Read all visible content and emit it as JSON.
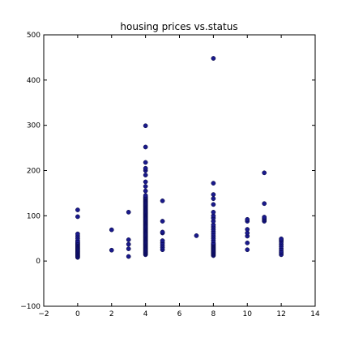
{
  "chart_data": {
    "type": "scatter",
    "title": "housing prices vs.status",
    "xlabel": "",
    "ylabel": "",
    "xlim": [
      -2,
      14
    ],
    "ylim": [
      -100,
      500
    ],
    "xticks": [
      -2,
      0,
      2,
      4,
      6,
      8,
      10,
      12,
      14
    ],
    "yticks": [
      -100,
      0,
      100,
      200,
      300,
      400,
      500
    ],
    "grid": false,
    "marker_color": "#1a1a8c",
    "marker_edge": "#000033",
    "series": [
      {
        "points": [
          [
            0,
            8
          ],
          [
            0,
            10
          ],
          [
            0,
            12
          ],
          [
            0,
            14
          ],
          [
            0,
            16
          ],
          [
            0,
            18
          ],
          [
            0,
            20
          ],
          [
            0,
            22
          ],
          [
            0,
            24
          ],
          [
            0,
            26
          ],
          [
            0,
            28
          ],
          [
            0,
            30
          ],
          [
            0,
            32
          ],
          [
            0,
            34
          ],
          [
            0,
            36
          ],
          [
            0,
            38
          ],
          [
            0,
            40
          ],
          [
            0,
            42
          ],
          [
            0,
            45
          ],
          [
            0,
            50
          ],
          [
            0,
            55
          ],
          [
            0,
            60
          ],
          [
            0,
            98
          ],
          [
            0,
            113
          ],
          [
            2,
            24
          ],
          [
            2,
            69
          ],
          [
            3,
            10
          ],
          [
            3,
            27
          ],
          [
            3,
            37
          ],
          [
            3,
            47
          ],
          [
            3,
            108
          ],
          [
            4,
            14
          ],
          [
            4,
            16
          ],
          [
            4,
            18
          ],
          [
            4,
            20
          ],
          [
            4,
            22
          ],
          [
            4,
            24
          ],
          [
            4,
            26
          ],
          [
            4,
            28
          ],
          [
            4,
            30
          ],
          [
            4,
            32
          ],
          [
            4,
            34
          ],
          [
            4,
            36
          ],
          [
            4,
            38
          ],
          [
            4,
            40
          ],
          [
            4,
            42
          ],
          [
            4,
            44
          ],
          [
            4,
            46
          ],
          [
            4,
            48
          ],
          [
            4,
            50
          ],
          [
            4,
            52
          ],
          [
            4,
            54
          ],
          [
            4,
            56
          ],
          [
            4,
            58
          ],
          [
            4,
            60
          ],
          [
            4,
            62
          ],
          [
            4,
            64
          ],
          [
            4,
            66
          ],
          [
            4,
            68
          ],
          [
            4,
            70
          ],
          [
            4,
            72
          ],
          [
            4,
            74
          ],
          [
            4,
            76
          ],
          [
            4,
            78
          ],
          [
            4,
            80
          ],
          [
            4,
            82
          ],
          [
            4,
            84
          ],
          [
            4,
            86
          ],
          [
            4,
            88
          ],
          [
            4,
            90
          ],
          [
            4,
            92
          ],
          [
            4,
            94
          ],
          [
            4,
            96
          ],
          [
            4,
            98
          ],
          [
            4,
            100
          ],
          [
            4,
            102
          ],
          [
            4,
            104
          ],
          [
            4,
            106
          ],
          [
            4,
            108
          ],
          [
            4,
            110
          ],
          [
            4,
            112
          ],
          [
            4,
            114
          ],
          [
            4,
            116
          ],
          [
            4,
            118
          ],
          [
            4,
            120
          ],
          [
            4,
            122
          ],
          [
            4,
            124
          ],
          [
            4,
            126
          ],
          [
            4,
            128
          ],
          [
            4,
            130
          ],
          [
            4,
            132
          ],
          [
            4,
            134
          ],
          [
            4,
            136
          ],
          [
            4,
            138
          ],
          [
            4,
            140
          ],
          [
            4,
            142
          ],
          [
            4,
            145
          ],
          [
            4,
            155
          ],
          [
            4,
            165
          ],
          [
            4,
            175
          ],
          [
            4,
            190
          ],
          [
            4,
            200
          ],
          [
            4,
            205
          ],
          [
            4,
            218
          ],
          [
            4,
            252
          ],
          [
            4,
            299
          ],
          [
            5,
            25
          ],
          [
            5,
            30
          ],
          [
            5,
            35
          ],
          [
            5,
            40
          ],
          [
            5,
            45
          ],
          [
            5,
            62
          ],
          [
            5,
            64
          ],
          [
            5,
            88
          ],
          [
            5,
            133
          ],
          [
            7,
            56
          ],
          [
            8,
            12
          ],
          [
            8,
            14
          ],
          [
            8,
            16
          ],
          [
            8,
            18
          ],
          [
            8,
            20
          ],
          [
            8,
            22
          ],
          [
            8,
            24
          ],
          [
            8,
            26
          ],
          [
            8,
            28
          ],
          [
            8,
            30
          ],
          [
            8,
            32
          ],
          [
            8,
            34
          ],
          [
            8,
            36
          ],
          [
            8,
            38
          ],
          [
            8,
            40
          ],
          [
            8,
            45
          ],
          [
            8,
            50
          ],
          [
            8,
            55
          ],
          [
            8,
            60
          ],
          [
            8,
            65
          ],
          [
            8,
            70
          ],
          [
            8,
            75
          ],
          [
            8,
            80
          ],
          [
            8,
            88
          ],
          [
            8,
            95
          ],
          [
            8,
            100
          ],
          [
            8,
            108
          ],
          [
            8,
            125
          ],
          [
            8,
            138
          ],
          [
            8,
            147
          ],
          [
            8,
            172
          ],
          [
            8,
            448
          ],
          [
            10,
            25
          ],
          [
            10,
            40
          ],
          [
            10,
            55
          ],
          [
            10,
            62
          ],
          [
            10,
            70
          ],
          [
            10,
            88
          ],
          [
            10,
            92
          ],
          [
            11,
            88
          ],
          [
            11,
            91
          ],
          [
            11,
            94
          ],
          [
            11,
            97
          ],
          [
            11,
            127
          ],
          [
            11,
            195
          ],
          [
            12,
            14
          ],
          [
            12,
            18
          ],
          [
            12,
            22
          ],
          [
            12,
            27
          ],
          [
            12,
            32
          ],
          [
            12,
            37
          ],
          [
            12,
            42
          ],
          [
            12,
            46
          ],
          [
            12,
            49
          ]
        ]
      }
    ]
  }
}
